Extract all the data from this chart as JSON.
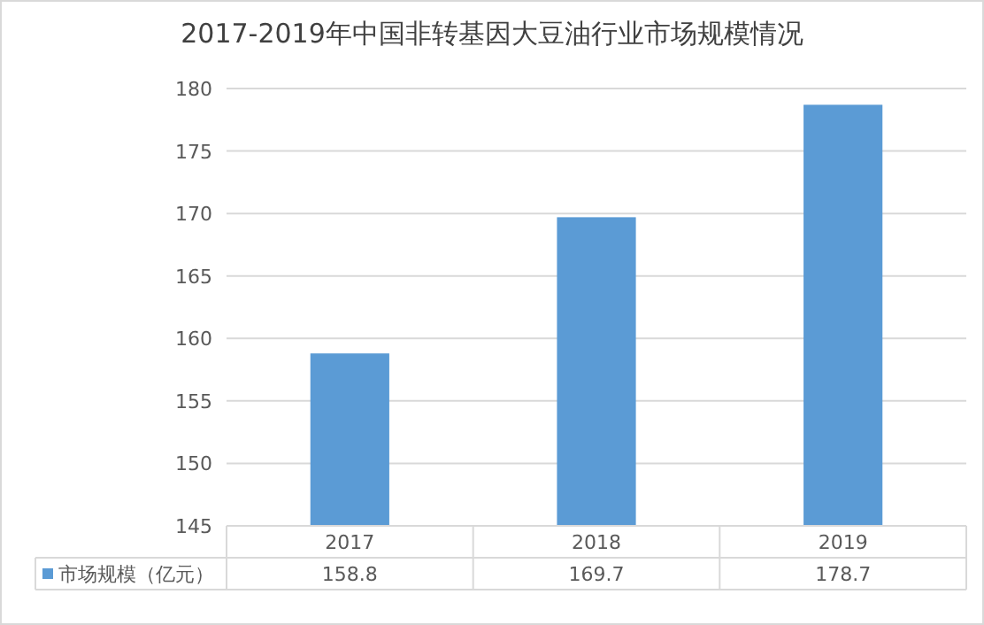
{
  "chart_data": {
    "type": "bar",
    "title": "2017-2019年中国非转基因大豆油行业市场规模情况",
    "categories": [
      "2017",
      "2018",
      "2019"
    ],
    "series": [
      {
        "name": "市场规模（亿元）",
        "color": "#5b9bd5",
        "values": [
          158.8,
          169.7,
          178.7
        ]
      }
    ],
    "ylim": [
      145,
      180
    ],
    "yticks": [
      145,
      150,
      155,
      160,
      165,
      170,
      175,
      180
    ],
    "grid": "y",
    "data_labels": true,
    "legend": "bottom left"
  }
}
